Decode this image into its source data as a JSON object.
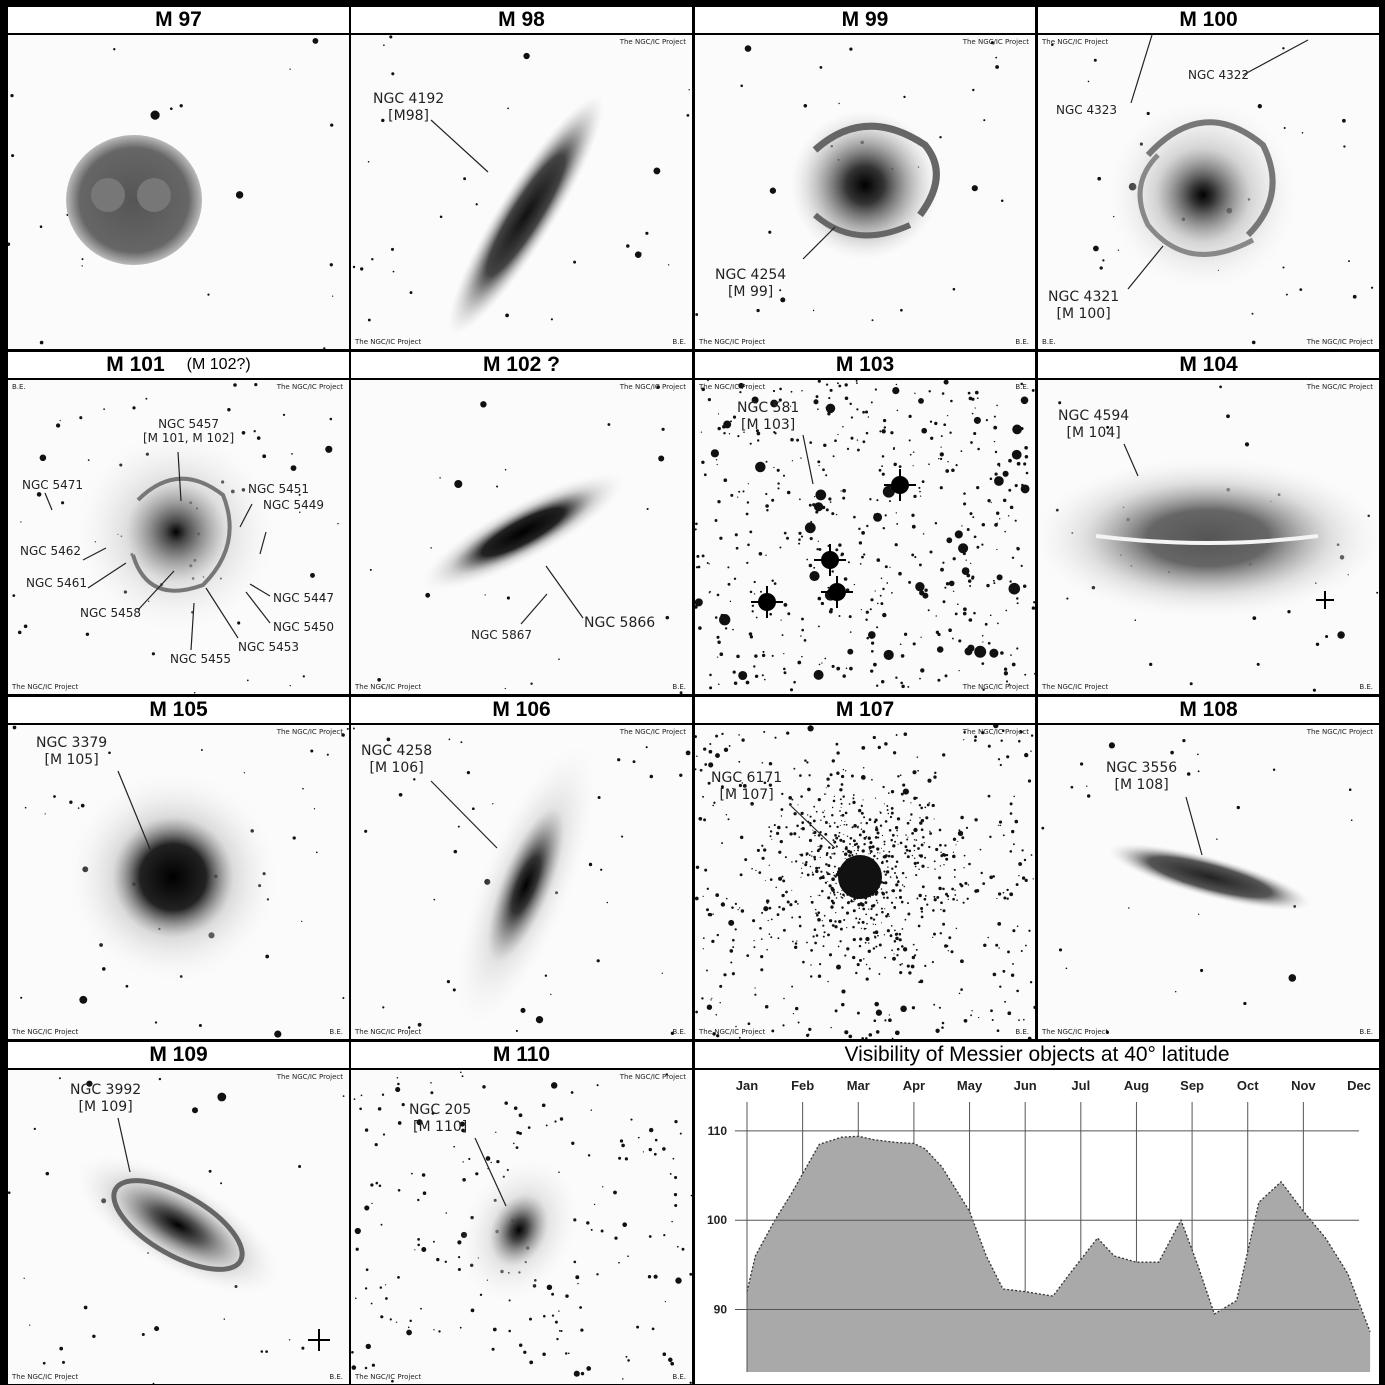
{
  "panels": [
    {
      "title": "M 97"
    },
    {
      "title": "M 98",
      "labels": [
        {
          "text": "NGC 4192\n[M98]"
        }
      ],
      "credit_top": "The NGC/IC Project",
      "credit_bl": "The NGC/IC Project",
      "credit_br": "B.E."
    },
    {
      "title": "M 99",
      "labels": [
        {
          "text": "NGC 4254\n[M 99]"
        }
      ],
      "credit_top": "The NGC/IC Project",
      "credit_bl": "The NGC/IC Project",
      "credit_br": "B.E."
    },
    {
      "title": "M 100",
      "labels": [
        {
          "text": "NGC 4322"
        },
        {
          "text": "NGC 4323"
        },
        {
          "text": "NGC 4321\n[M 100]"
        }
      ],
      "credit_tl": "The NGC/IC Project",
      "credit_bl": "B.E.",
      "credit_br": "The NGC/IC Project"
    },
    {
      "title": "M 101",
      "subtitle": "(M 102?)",
      "labels": [
        {
          "text": "NGC 5457\n[M 101, M 102]"
        },
        {
          "text": "NGC 5471"
        },
        {
          "text": "NGC 5451"
        },
        {
          "text": "NGC 5449"
        },
        {
          "text": "NGC 5462"
        },
        {
          "text": "NGC 5461"
        },
        {
          "text": "NGC 5458"
        },
        {
          "text": "NGC 5447"
        },
        {
          "text": "NGC 5450"
        },
        {
          "text": "NGC 5453"
        },
        {
          "text": "NGC 5455"
        }
      ],
      "credit_tl": "B.E.",
      "credit_top": "The NGC/IC Project",
      "credit_bl": "The NGC/IC Project"
    },
    {
      "title": "M 102 ?",
      "labels": [
        {
          "text": "NGC 5866"
        },
        {
          "text": "NGC 5867"
        }
      ],
      "credit_top": "The NGC/IC Project",
      "credit_bl": "The NGC/IC Project",
      "credit_br": "B.E."
    },
    {
      "title": "M 103",
      "labels": [
        {
          "text": "NGC 581\n[M 103]"
        }
      ],
      "credit_tl": "The NGC/IC Project",
      "credit_tr": "B.E.",
      "credit_br": "The NGC/IC Project"
    },
    {
      "title": "M 104",
      "labels": [
        {
          "text": "NGC 4594\n[M 104]"
        }
      ],
      "credit_top": "The NGC/IC Project",
      "credit_bl": "The NGC/IC Project",
      "credit_br": "B.E."
    },
    {
      "title": "M 105",
      "labels": [
        {
          "text": "NGC 3379\n[M 105]"
        }
      ],
      "credit_top": "The NGC/IC Project",
      "credit_bl": "The NGC/IC Project",
      "credit_br": "B.E."
    },
    {
      "title": "M 106",
      "labels": [
        {
          "text": "NGC 4258\n[M 106]"
        }
      ],
      "credit_top": "The NGC/IC Project",
      "credit_bl": "The NGC/IC Project",
      "credit_br": "B.E."
    },
    {
      "title": "M 107",
      "labels": [
        {
          "text": "NGC 6171\n[M 107]"
        }
      ],
      "credit_top": "The NGC/IC Project",
      "credit_bl": "The NGC/IC Project",
      "credit_br": "B.E."
    },
    {
      "title": "M 108",
      "labels": [
        {
          "text": "NGC 3556\n[M 108]"
        }
      ],
      "credit_top": "The NGC/IC Project",
      "credit_bl": "The NGC/IC Project",
      "credit_br": "B.E."
    },
    {
      "title": "M 109",
      "labels": [
        {
          "text": "NGC 3992\n[M 109]"
        }
      ],
      "credit_top": "The NGC/IC Project",
      "credit_bl": "The NGC/IC Project",
      "credit_br": "B.E."
    },
    {
      "title": "M 110",
      "labels": [
        {
          "text": "NGC 205\n[M 110]"
        }
      ],
      "credit_top": "The NGC/IC Project",
      "credit_bl": "The NGC/IC Project",
      "credit_br": "B.E."
    }
  ],
  "chart_data": {
    "type": "area",
    "title": "Visibility of Messier objects at 40° latitude",
    "categories": [
      "Jan",
      "Feb",
      "Mar",
      "Apr",
      "May",
      "Jun",
      "Jul",
      "Aug",
      "Sep",
      "Oct",
      "Nov",
      "Dec"
    ],
    "y_ticks": [
      90,
      100,
      110
    ],
    "ylim": [
      83,
      111
    ],
    "x": [
      0,
      0.15,
      0.5,
      0.8,
      1.3,
      1.7,
      2,
      2.3,
      2.7,
      3,
      3.2,
      3.5,
      4,
      4.3,
      4.6,
      5,
      5.5,
      5.8,
      6.3,
      6.6,
      7,
      7.4,
      7.8,
      8.1,
      8.4,
      8.8,
      9.2,
      9.6,
      10,
      10.4,
      10.8,
      11.2
    ],
    "values": [
      92,
      96,
      100,
      103,
      108.5,
      109.3,
      109.4,
      109,
      108.7,
      108.6,
      108,
      106,
      101,
      96,
      92.3,
      92,
      91.5,
      94,
      98,
      96,
      95.3,
      95.3,
      100,
      95,
      89.5,
      91,
      102,
      104.3,
      101,
      98,
      94,
      87.5
    ],
    "grid": true,
    "area_color": "#a9a9a9",
    "line_style": "dotted"
  }
}
